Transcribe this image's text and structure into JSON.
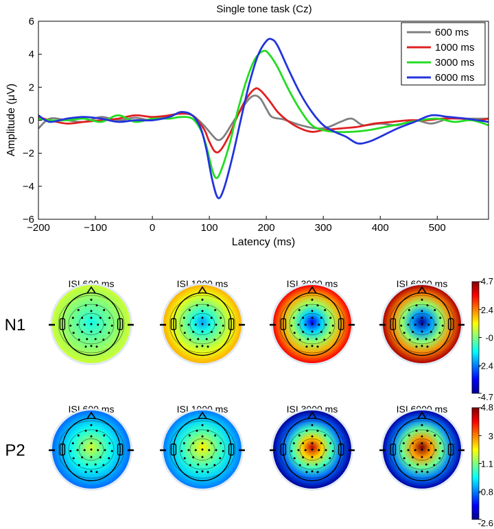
{
  "chart_data": [
    {
      "type": "line",
      "title": "Single tone task (Cz)",
      "xlabel": "Latency (ms)",
      "ylabel": "Amplitude (μV)",
      "xlim": [
        -200,
        590
      ],
      "ylim": [
        -6,
        6
      ],
      "xticks": [
        -200,
        -100,
        0,
        100,
        200,
        300,
        400,
        500
      ],
      "xtick_labels": [
        "−200",
        "−100",
        "0",
        "100",
        "200",
        "300",
        "400",
        "500"
      ],
      "yticks": [
        -6,
        -4,
        -2,
        0,
        2,
        4,
        6
      ],
      "ytick_labels": [
        "−6",
        "−4",
        "−2",
        "0",
        "2",
        "4",
        "6"
      ],
      "legend_position": "top-right",
      "series": [
        {
          "name": "600 ms",
          "color": "#808080",
          "points": [
            [
              -200,
              -0.5
            ],
            [
              -180,
              0.1
            ],
            [
              -150,
              0.0
            ],
            [
              -120,
              -0.1
            ],
            [
              -90,
              0.2
            ],
            [
              -60,
              0.0
            ],
            [
              -30,
              0.15
            ],
            [
              0,
              0.0
            ],
            [
              30,
              0.3
            ],
            [
              50,
              0.4
            ],
            [
              70,
              0.3
            ],
            [
              90,
              -0.3
            ],
            [
              105,
              -0.9
            ],
            [
              115,
              -1.2
            ],
            [
              125,
              -1.0
            ],
            [
              140,
              -0.2
            ],
            [
              155,
              0.6
            ],
            [
              170,
              1.3
            ],
            [
              180,
              1.5
            ],
            [
              190,
              1.3
            ],
            [
              200,
              0.7
            ],
            [
              210,
              0.2
            ],
            [
              230,
              0.05
            ],
            [
              260,
              -0.3
            ],
            [
              290,
              -0.5
            ],
            [
              310,
              -0.4
            ],
            [
              330,
              -0.1
            ],
            [
              350,
              0.1
            ],
            [
              370,
              -0.3
            ],
            [
              400,
              -0.2
            ],
            [
              430,
              -0.3
            ],
            [
              460,
              0.0
            ],
            [
              490,
              -0.2
            ],
            [
              520,
              0.1
            ],
            [
              550,
              0.1
            ],
            [
              590,
              0.1
            ]
          ]
        },
        {
          "name": "1000 ms",
          "color": "#e02020",
          "points": [
            [
              -200,
              0.2
            ],
            [
              -180,
              0.0
            ],
            [
              -150,
              -0.2
            ],
            [
              -120,
              -0.1
            ],
            [
              -90,
              0.0
            ],
            [
              -60,
              0.1
            ],
            [
              -30,
              0.3
            ],
            [
              0,
              0.2
            ],
            [
              30,
              0.3
            ],
            [
              50,
              0.4
            ],
            [
              70,
              0.3
            ],
            [
              90,
              -0.5
            ],
            [
              100,
              -1.3
            ],
            [
              110,
              -1.9
            ],
            [
              120,
              -1.8
            ],
            [
              135,
              -0.9
            ],
            [
              150,
              0.3
            ],
            [
              165,
              1.3
            ],
            [
              180,
              1.9
            ],
            [
              190,
              1.8
            ],
            [
              205,
              1.2
            ],
            [
              220,
              0.5
            ],
            [
              240,
              -0.1
            ],
            [
              260,
              -0.5
            ],
            [
              280,
              -0.7
            ],
            [
              300,
              -0.6
            ],
            [
              330,
              -0.5
            ],
            [
              360,
              -0.4
            ],
            [
              390,
              -0.2
            ],
            [
              420,
              -0.1
            ],
            [
              450,
              0.0
            ],
            [
              480,
              0.0
            ],
            [
              510,
              0.1
            ],
            [
              540,
              0.1
            ],
            [
              570,
              0.0
            ],
            [
              590,
              0.1
            ]
          ]
        },
        {
          "name": "3000 ms",
          "color": "#22dd22",
          "points": [
            [
              -200,
              0.1
            ],
            [
              -180,
              0.0
            ],
            [
              -150,
              0.0
            ],
            [
              -120,
              0.1
            ],
            [
              -90,
              -0.1
            ],
            [
              -60,
              0.3
            ],
            [
              -30,
              -0.1
            ],
            [
              0,
              0.1
            ],
            [
              30,
              0.1
            ],
            [
              50,
              0.2
            ],
            [
              70,
              0.1
            ],
            [
              85,
              -0.6
            ],
            [
              95,
              -1.6
            ],
            [
              105,
              -3.0
            ],
            [
              112,
              -3.5
            ],
            [
              120,
              -3.1
            ],
            [
              135,
              -1.5
            ],
            [
              150,
              0.6
            ],
            [
              165,
              2.4
            ],
            [
              180,
              3.7
            ],
            [
              195,
              4.2
            ],
            [
              205,
              4.0
            ],
            [
              220,
              3.2
            ],
            [
              240,
              1.8
            ],
            [
              260,
              0.6
            ],
            [
              280,
              -0.3
            ],
            [
              300,
              -0.6
            ],
            [
              320,
              -0.7
            ],
            [
              350,
              -0.7
            ],
            [
              380,
              -0.6
            ],
            [
              410,
              -0.4
            ],
            [
              440,
              -0.2
            ],
            [
              470,
              0.0
            ],
            [
              500,
              0.1
            ],
            [
              530,
              -0.1
            ],
            [
              560,
              0.0
            ],
            [
              590,
              -0.3
            ]
          ]
        },
        {
          "name": "6000 ms",
          "color": "#2233dd",
          "points": [
            [
              -200,
              0.3
            ],
            [
              -180,
              -0.1
            ],
            [
              -150,
              0.1
            ],
            [
              -120,
              0.2
            ],
            [
              -90,
              0.1
            ],
            [
              -60,
              -0.1
            ],
            [
              -30,
              0.0
            ],
            [
              0,
              0.0
            ],
            [
              30,
              0.2
            ],
            [
              50,
              0.5
            ],
            [
              70,
              0.3
            ],
            [
              85,
              -0.5
            ],
            [
              95,
              -1.8
            ],
            [
              105,
              -3.6
            ],
            [
              115,
              -4.7
            ],
            [
              125,
              -4.2
            ],
            [
              140,
              -2.3
            ],
            [
              155,
              0.0
            ],
            [
              170,
              2.2
            ],
            [
              185,
              3.9
            ],
            [
              200,
              4.8
            ],
            [
              210,
              4.9
            ],
            [
              220,
              4.5
            ],
            [
              240,
              3.0
            ],
            [
              260,
              1.6
            ],
            [
              280,
              0.5
            ],
            [
              300,
              -0.3
            ],
            [
              320,
              -0.7
            ],
            [
              340,
              -1.0
            ],
            [
              360,
              -1.4
            ],
            [
              380,
              -1.3
            ],
            [
              400,
              -1.0
            ],
            [
              430,
              -0.5
            ],
            [
              460,
              -0.1
            ],
            [
              490,
              0.3
            ],
            [
              520,
              0.2
            ],
            [
              550,
              0.1
            ],
            [
              590,
              -0.1
            ]
          ]
        }
      ]
    },
    {
      "type": "heatmap",
      "subtype": "scalp-topography",
      "rows": [
        "N1",
        "P2"
      ],
      "columns": [
        "ISI 600 ms",
        "ISI 1000 ms",
        "ISI 3000 ms",
        "ISI 6000 ms"
      ],
      "colorbar_ticks": {
        "N1": [
          "4.7",
          "2.4",
          "-0",
          "-2.4",
          "-4.7"
        ],
        "P2": [
          "4.8",
          "3",
          "1.1",
          "-0.8",
          "-2.6"
        ]
      },
      "colorbar_range": {
        "N1": [
          -4.7,
          4.7
        ],
        "P2": [
          -2.6,
          4.8
        ]
      },
      "center_value": {
        "N1": [
          -1.0,
          -2.0,
          -3.6,
          -4.6
        ],
        "P2": [
          1.7,
          2.1,
          4.3,
          4.8
        ]
      },
      "edge_value": {
        "N1": [
          0.7,
          1.9,
          3.6,
          4.3
        ],
        "P2": [
          -0.9,
          -0.8,
          -2.5,
          -2.4
        ]
      }
    }
  ]
}
